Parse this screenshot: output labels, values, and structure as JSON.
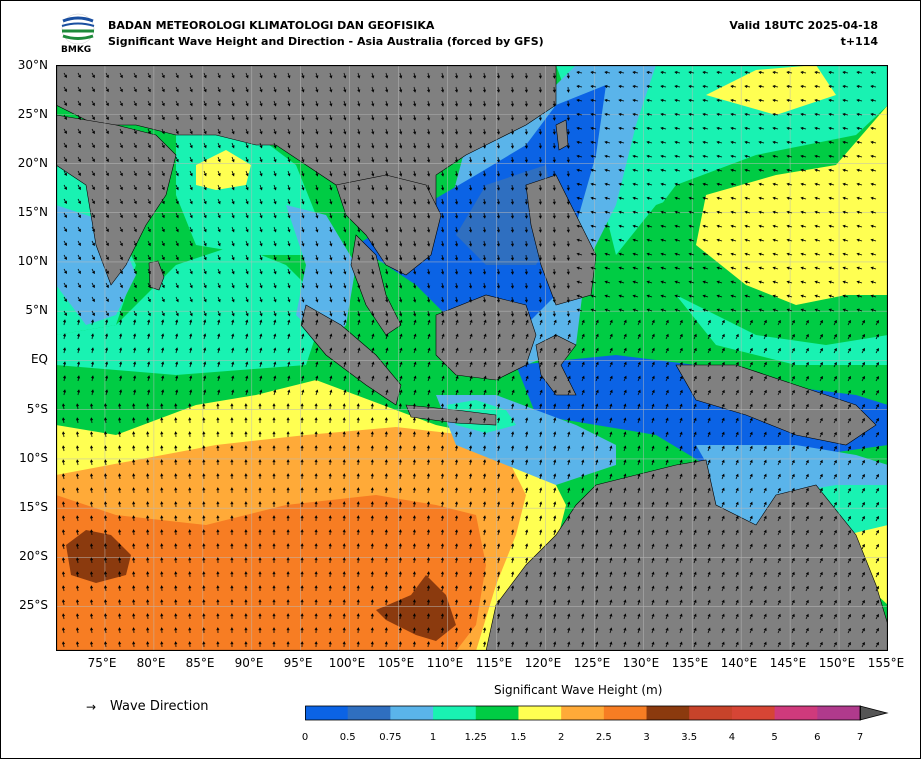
{
  "header": {
    "agency": "BADAN METEOROLOGI KLIMATOLOGI DAN GEOFISIKA",
    "product": "Significant Wave Height and Direction - Asia Australia (forced by GFS)",
    "valid": "Valid 18UTC 2025-04-18",
    "step": "t+114",
    "logo_text": "BMKG"
  },
  "map": {
    "lon_range": [
      70,
      155
    ],
    "lat_range": [
      -29.5,
      30
    ],
    "grid": true,
    "lat_labels": [
      "30°N",
      "25°N",
      "20°N",
      "15°N",
      "10°N",
      "5°N",
      "EQ",
      "5°S",
      "10°S",
      "15°S",
      "20°S",
      "25°S"
    ],
    "lon_labels": [
      "75°E",
      "80°E",
      "85°E",
      "90°E",
      "95°E",
      "100°E",
      "105°E",
      "110°E",
      "115°E",
      "120°E",
      "125°E",
      "130°E",
      "135°E",
      "140°E",
      "145°E",
      "150°E",
      "155°E"
    ],
    "colors": {
      "land": "#808080",
      "ocean_background": "#00cc44"
    }
  },
  "legend": {
    "arrow_symbol": "→",
    "label": "Wave Direction"
  },
  "colorbar": {
    "title": "Significant Wave Height (m)",
    "ticks": [
      "0",
      "0.5",
      "0.75",
      "1",
      "1.25",
      "1.5",
      "2",
      "2.5",
      "3",
      "3.5",
      "4",
      "5",
      "6",
      "7"
    ],
    "colors": [
      "#0b63e5",
      "#2f6fc0",
      "#5ab4ea",
      "#19f2b2",
      "#00cc44",
      "#ffff52",
      "#ffaa38",
      "#f77d23",
      "#8b3a0e",
      "#c7432a",
      "#d64535",
      "#cf3a7c",
      "#b03a8c"
    ],
    "extend": "max"
  }
}
